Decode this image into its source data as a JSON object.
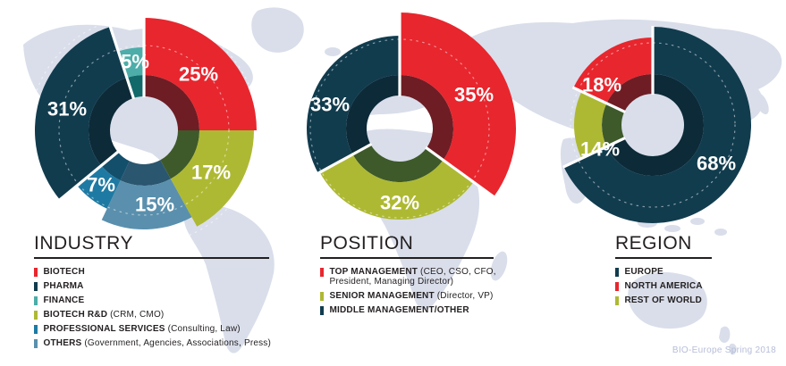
{
  "footer": {
    "text": "BIO-Europe Spring 2018"
  },
  "palette": {
    "red": "#e8262e",
    "dark_red": "#6e1d24",
    "navy": "#113c4e",
    "dark_navy": "#0c2a38",
    "olive": "#aeb933",
    "dark_olive": "#3e5a2a",
    "teal": "#4cada9",
    "dark_teal": "#11696a",
    "blue": "#1e7aa3",
    "dark_blue": "#134f6b",
    "steel": "#5a90ad",
    "dark_steel": "#2b5670",
    "map_land": "#d9deea",
    "text": "#231f20",
    "footer_text": "#b6bdd8"
  },
  "chart_data": [
    {
      "type": "donut",
      "title": "INDUSTRY",
      "start_angle": "12 o'clock",
      "direction": "clockwise",
      "hole_r": 38,
      "inner_ring_r": 62,
      "guide_circle_radii": [
        95,
        128
      ],
      "segments": [
        {
          "label": "BIOTECH",
          "value_pct": 25,
          "color": "#e8262e",
          "dark_color": "#6e1d24",
          "outer_r": 126,
          "gap_before": true,
          "label_offset": [
            61,
            -63
          ]
        },
        {
          "label": "BIOTECH R&D (CRM, CMO)",
          "value_pct": 17,
          "color": "#aeb933",
          "dark_color": "#3e5a2a",
          "outer_r": 123,
          "gap_before": false,
          "label_offset": [
            75,
            47
          ]
        },
        {
          "label": "OTHERS (Government, Agencies, Associations, Press)",
          "value_pct": 15,
          "color": "#5a90ad",
          "dark_color": "#2b5670",
          "outer_r": 111,
          "gap_before": false,
          "label_offset": [
            12,
            83
          ]
        },
        {
          "label": "PROFESSIONAL SERVICES (Consulting, Law)",
          "value_pct": 7,
          "color": "#1e7aa3",
          "dark_color": "#134f6b",
          "outer_r": 97,
          "gap_before": false,
          "label_offset": [
            -48,
            61
          ]
        },
        {
          "label": "PHARMA",
          "value_pct": 31,
          "color": "#113c4e",
          "dark_color": "#0c2a38",
          "outer_r": 122,
          "gap_before": true,
          "label_offset": [
            -86,
            -24
          ]
        },
        {
          "label": "FINANCE",
          "value_pct": 5,
          "color": "#4cada9",
          "dark_color": "#11696a",
          "outer_r": 93,
          "gap_before": true,
          "label_offset": [
            -10,
            -77
          ]
        }
      ],
      "legend": {
        "title": "INDUSTRY",
        "items": [
          {
            "label": "BIOTECH",
            "detail": "",
            "color": "#e8262e"
          },
          {
            "label": "PHARMA",
            "detail": "",
            "color": "#113c4e"
          },
          {
            "label": "FINANCE",
            "detail": "",
            "color": "#4cada9"
          },
          {
            "label": "BIOTECH R&D",
            "detail": "(CRM, CMO)",
            "color": "#aeb933"
          },
          {
            "label": "PROFESSIONAL SERVICES",
            "detail": "(Consulting, Law)",
            "color": "#1e7aa3"
          },
          {
            "label": "OTHERS",
            "detail": "(Government, Agencies, Associations, Press)",
            "color": "#5a90ad"
          }
        ]
      }
    },
    {
      "type": "donut",
      "title": "POSITION",
      "start_angle": "12 o'clock",
      "direction": "clockwise",
      "hole_r": 37,
      "inner_ring_r": 60,
      "guide_circle_radii": [
        100
      ],
      "segments": [
        {
          "label": "TOP MANAGEMENT (CEO, CSO, CFO, President, Managing Director)",
          "value_pct": 35,
          "color": "#e8262e",
          "dark_color": "#6e1d24",
          "outer_r": 130,
          "gap_before": true,
          "label_offset": [
            83,
            -38
          ]
        },
        {
          "label": "SENIOR MANAGEMENT (Director, VP)",
          "value_pct": 32,
          "color": "#aeb933",
          "dark_color": "#3e5a2a",
          "outer_r": 102,
          "gap_before": true,
          "label_offset": [
            0,
            83
          ]
        },
        {
          "label": "MIDDLE MANAGEMENT/OTHER",
          "value_pct": 33,
          "color": "#113c4e",
          "dark_color": "#0c2a38",
          "outer_r": 104,
          "gap_before": true,
          "label_offset": [
            -78,
            -27
          ]
        }
      ],
      "legend": {
        "title": "POSITION",
        "items": [
          {
            "label": "TOP MANAGEMENT",
            "detail": "(CEO, CSO, CFO, President, Managing Director)",
            "color": "#e8262e"
          },
          {
            "label": "SENIOR MANAGEMENT",
            "detail": "(Director, VP)",
            "color": "#aeb933"
          },
          {
            "label": "MIDDLE MANAGEMENT/OTHER",
            "detail": "",
            "color": "#113c4e"
          }
        ]
      }
    },
    {
      "type": "donut",
      "title": "REGION",
      "start_angle": "12 o'clock",
      "direction": "clockwise",
      "hole_r": 35,
      "inner_ring_r": 57,
      "guide_circle_radii": [
        92
      ],
      "segments": [
        {
          "label": "EUROPE",
          "value_pct": 68,
          "color": "#113c4e",
          "dark_color": "#0c2a38",
          "outer_r": 110,
          "gap_before": true,
          "label_offset": [
            71,
            43
          ]
        },
        {
          "label": "REST OF WORLD",
          "value_pct": 14,
          "color": "#aeb933",
          "dark_color": "#3e5a2a",
          "outer_r": 88,
          "gap_before": true,
          "label_offset": [
            -59,
            27
          ]
        },
        {
          "label": "NORTH AMERICA",
          "value_pct": 18,
          "color": "#e8262e",
          "dark_color": "#6e1d24",
          "outer_r": 98,
          "gap_before": true,
          "label_offset": [
            -57,
            -45
          ]
        }
      ],
      "legend": {
        "title": "REGION",
        "items": [
          {
            "label": "EUROPE",
            "detail": "",
            "color": "#113c4e"
          },
          {
            "label": "NORTH AMERICA",
            "detail": "",
            "color": "#e8262e"
          },
          {
            "label": "REST OF WORLD",
            "detail": "",
            "color": "#aeb933"
          }
        ]
      }
    }
  ]
}
